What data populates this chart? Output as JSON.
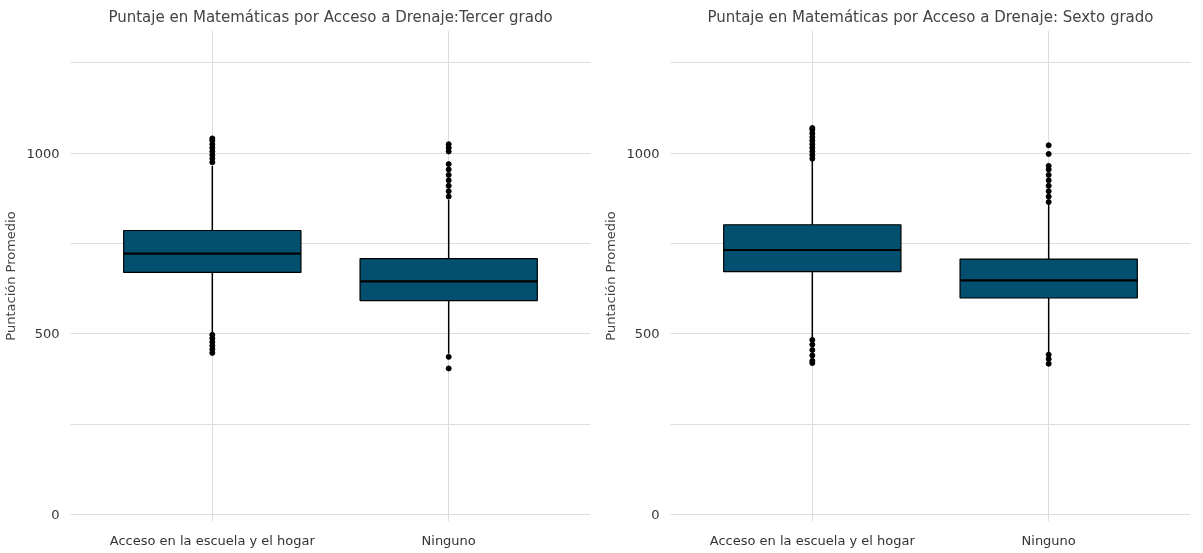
{
  "chart_data": [
    {
      "type": "box",
      "title": "Puntaje en Matemáticas por Acceso a Drenaje:Tercer grado",
      "ylabel": "Puntación Promedio",
      "categories": [
        "Acceso en la escuela y el hogar",
        "Ninguno"
      ],
      "series": [
        {
          "color": "#034f70",
          "boxes": [
            {
              "low": 505,
              "q1": 670,
              "median": 722,
              "q3": 786,
              "high": 965,
              "outliers": [
                975,
                985,
                995,
                1005,
                1015,
                1025,
                1035,
                1041,
                497,
                487,
                477,
                467,
                457,
                447
              ]
            },
            {
              "low": 445,
              "q1": 592,
              "median": 645,
              "q3": 708,
              "high": 871,
              "outliers": [
                880,
                895,
                910,
                925,
                940,
                955,
                970,
                1005,
                1015,
                1025,
                436,
                404
              ]
            }
          ]
        }
      ],
      "ylim": [
        -20,
        1340
      ],
      "yticks": [
        0,
        {
          "value": 250,
          "label": null
        },
        500,
        {
          "value": 750,
          "label": null
        },
        1000,
        {
          "value": 1250,
          "label": null
        }
      ],
      "grid": true
    },
    {
      "type": "box",
      "title": "Puntaje en Matemáticas por Acceso a Drenaje: Sexto grado",
      "ylabel": "Puntación Promedio",
      "categories": [
        "Acceso en la escuela y el hogar",
        "Ninguno"
      ],
      "series": [
        {
          "color": "#034f70",
          "boxes": [
            {
              "low": 489,
              "q1": 672,
              "median": 732,
              "q3": 802,
              "high": 979,
              "outliers": [
                985,
                995,
                1005,
                1015,
                1025,
                1035,
                1045,
                1055,
                1065,
                1070,
                483,
                470,
                455,
                440,
                425,
                419
              ]
            },
            {
              "low": 448,
              "q1": 599,
              "median": 648,
              "q3": 707,
              "high": 859,
              "outliers": [
                865,
                880,
                895,
                910,
                925,
                940,
                955,
                965,
                998,
                1022,
                442,
                430,
                417
              ]
            }
          ]
        }
      ],
      "ylim": [
        -20,
        1340
      ],
      "yticks": [
        0,
        {
          "value": 250,
          "label": null
        },
        500,
        {
          "value": 750,
          "label": null
        },
        1000,
        {
          "value": 1250,
          "label": null
        }
      ],
      "grid": true
    }
  ]
}
